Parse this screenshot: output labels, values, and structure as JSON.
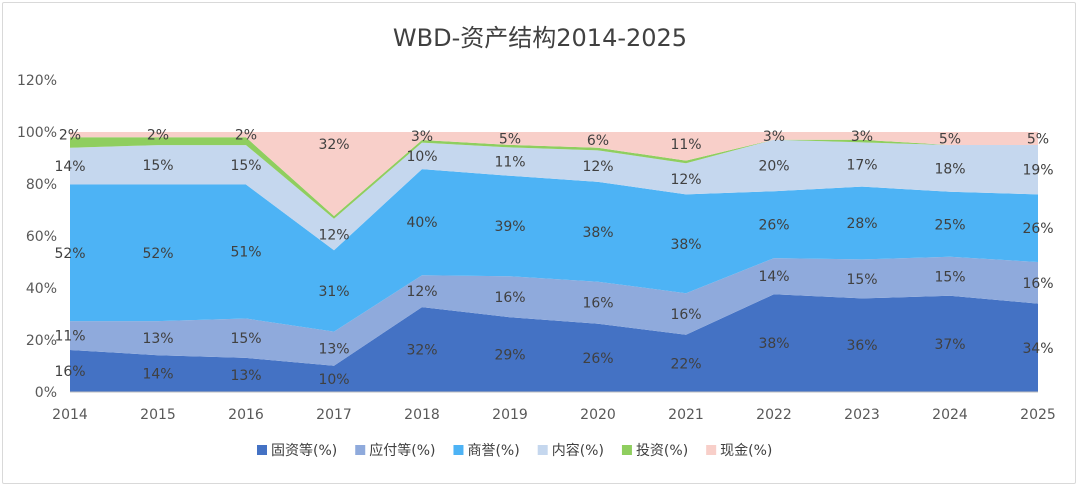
{
  "chart_data": {
    "type": "area",
    "stacked": true,
    "title": "WBD-资产结构2014-2025",
    "categories": [
      "2014",
      "2015",
      "2016",
      "2017",
      "2018",
      "2019",
      "2020",
      "2021",
      "2022",
      "2023",
      "2024",
      "2025"
    ],
    "y_ticks": [
      "0%",
      "20%",
      "40%",
      "60%",
      "80%",
      "100%",
      "120%"
    ],
    "ylim": [
      0,
      120
    ],
    "legend_position": "bottom",
    "series": [
      {
        "name": "固资等(%)",
        "color": "#4472c4",
        "values": [
          16,
          14,
          13,
          10,
          32,
          29,
          26,
          22,
          38,
          36,
          37,
          34
        ],
        "labels": [
          "16%",
          "14%",
          "13%",
          "10%",
          "32%",
          "29%",
          "26%",
          "22%",
          "38%",
          "36%",
          "37%",
          "34%"
        ]
      },
      {
        "name": "应付等(%)",
        "color": "#8faadc",
        "values": [
          11,
          13,
          15,
          13,
          12,
          16,
          16,
          16,
          14,
          15,
          15,
          16
        ],
        "labels": [
          "11%",
          "13%",
          "15%",
          "13%",
          "12%",
          "16%",
          "16%",
          "16%",
          "14%",
          "15%",
          "15%",
          "16%"
        ]
      },
      {
        "name": "商誉(%)",
        "color": "#4db3f5",
        "values": [
          52,
          52,
          51,
          31,
          40,
          39,
          38,
          38,
          26,
          28,
          25,
          26
        ],
        "labels": [
          "52%",
          "52%",
          "51%",
          "31%",
          "40%",
          "39%",
          "38%",
          "38%",
          "26%",
          "28%",
          "25%",
          "26%"
        ]
      },
      {
        "name": "内容(%)",
        "color": "#c5d7ee",
        "values": [
          14,
          15,
          15,
          12,
          10,
          11,
          12,
          12,
          20,
          17,
          18,
          19
        ],
        "labels": [
          "14%",
          "15%",
          "15%",
          "12%",
          "10%",
          "11%",
          "12%",
          "12%",
          "20%",
          "17%",
          "18%",
          "19%"
        ]
      },
      {
        "name": "投资(%)",
        "color": "#8fce5f",
        "values": [
          4,
          3,
          3,
          1,
          1,
          1,
          1,
          1,
          0,
          1,
          0,
          0
        ],
        "labels": []
      },
      {
        "name": "现金(%)",
        "color": "#f8cfc9",
        "values": [
          2,
          2,
          2,
          32,
          3,
          5,
          6,
          11,
          3,
          3,
          5,
          5
        ],
        "labels": [
          "2%",
          "2%",
          "2%",
          "32%",
          "3%",
          "5%",
          "6%",
          "11%",
          "3%",
          "3%",
          "5%",
          "5%"
        ]
      }
    ]
  }
}
